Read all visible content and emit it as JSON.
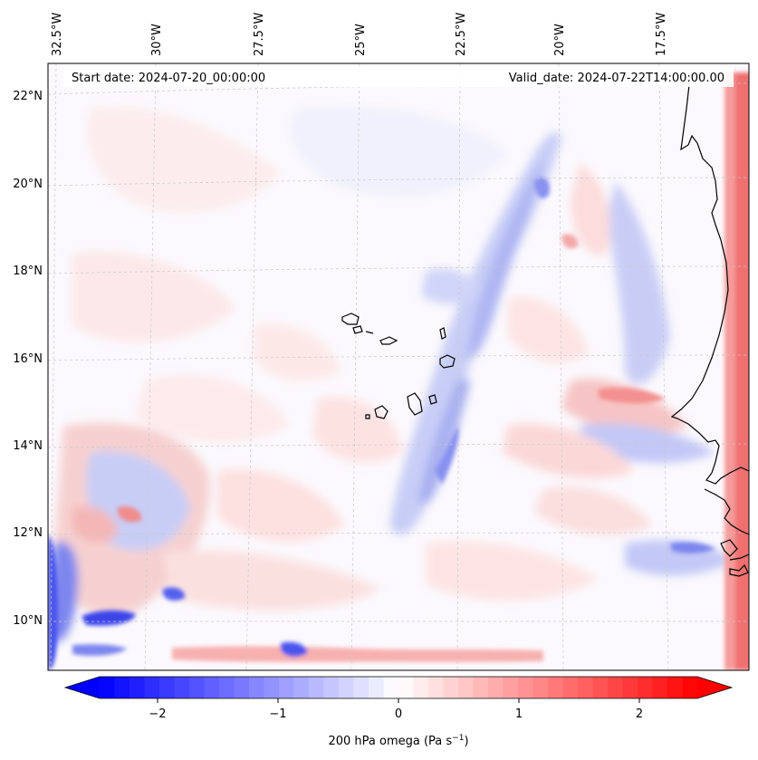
{
  "header": {
    "start_date": "Start date: 2024-07-20_00:00:00",
    "valid_date": "Valid_date: 2024-07-22T14:00:00.00"
  },
  "map": {
    "lon_labels": [
      "32.5°W",
      "30°W",
      "27.5°W",
      "25°W",
      "22.5°W",
      "20°W",
      "17.5°W"
    ],
    "lat_labels": [
      "22°N",
      "20°N",
      "18°N",
      "16°N",
      "14°N",
      "12°N",
      "10°N"
    ],
    "gridlines": true
  },
  "colorbar": {
    "ticks": [
      "−2",
      "−1",
      "0",
      "1",
      "2"
    ],
    "label": "200 hPa omega (Pa s",
    "label_sup": "−1",
    "label_end": ")",
    "range": [
      -2.75,
      2.75
    ],
    "colormap": "bwr",
    "extend": "both",
    "color_neg": "#0000ff",
    "color_mid": "#ffffff",
    "color_pos": "#ff0000"
  }
}
